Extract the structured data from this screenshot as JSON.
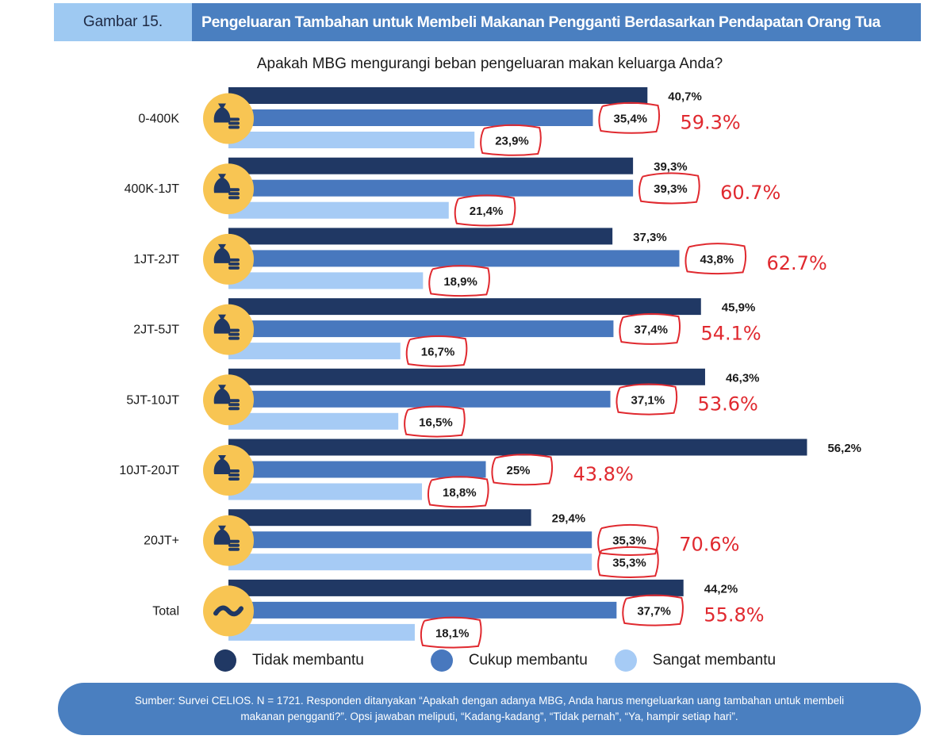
{
  "header": {
    "figure_label": "Gambar 15.",
    "title": "Pengeluaran Tambahan untuk Membeli Makanan Pengganti Berdasarkan Pendapatan Orang Tua"
  },
  "colors": {
    "series_dark": "#203864",
    "series_mid": "#4878be",
    "series_light": "#a6cbf5",
    "icon_circle": "#f8c553",
    "annotation_red": "#e0292f",
    "header_label_bg": "#9ec9f2",
    "header_title_bg": "#4a7fc0"
  },
  "chart_data": {
    "type": "bar",
    "orientation": "horizontal",
    "title": "Apakah MBG mengurangi beban pengeluaran makan keluarga Anda?",
    "categories": [
      "0-400K",
      "400K-1JT",
      "1JT-2JT",
      "2JT-5JT",
      "5JT-10JT",
      "10JT-20JT",
      "20JT+",
      "Total"
    ],
    "category_icons": [
      "money-bag-icon",
      "money-bag-icon",
      "money-bag-icon",
      "money-bag-icon",
      "money-bag-icon",
      "money-bag-icon",
      "money-bag-icon",
      "tilde-icon"
    ],
    "series": [
      {
        "name": "Tidak membantu",
        "values": [
          40.7,
          39.3,
          37.3,
          45.9,
          46.3,
          56.2,
          29.4,
          44.2
        ],
        "labels": [
          "40,7%",
          "39,3%",
          "37,3%",
          "45,9%",
          "46,3%",
          "56,2%",
          "29,4%",
          "44,2%"
        ]
      },
      {
        "name": "Cukup membantu",
        "values": [
          35.4,
          39.3,
          43.8,
          37.4,
          37.1,
          25,
          35.3,
          37.7
        ],
        "labels": [
          "35,4%",
          "39,3%",
          "43,8%",
          "37,4%",
          "37,1%",
          "25%",
          "35,3%",
          "37,7%"
        ]
      },
      {
        "name": "Sangat membantu",
        "values": [
          23.9,
          21.4,
          18.9,
          16.7,
          16.5,
          18.8,
          35.3,
          18.1
        ],
        "labels": [
          "23,9%",
          "21,4%",
          "18,9%",
          "16,7%",
          "16,5%",
          "18,8%",
          "35,3%",
          "18,1%"
        ]
      }
    ],
    "annotations": [
      "59.3%",
      "60.7%",
      "62.7%",
      "54.1%",
      "53.6%",
      "43.8%",
      "70.6%",
      "55.8%"
    ],
    "xlim": [
      0,
      60
    ],
    "grid": false,
    "legend": "bottom"
  },
  "legend": {
    "items": [
      "Tidak membantu",
      "Cukup membantu",
      "Sangat membantu"
    ]
  },
  "source": {
    "text": "Sumber: Survei CELIOS. N = 1721. Responden ditanyakan “Apakah dengan adanya MBG, Anda harus mengeluarkan uang tambahan untuk membeli makanan pengganti?”. Opsi jawaban meliputi, “Kadang-kadang”, “Tidak pernah”, “Ya, hampir setiap hari”."
  }
}
